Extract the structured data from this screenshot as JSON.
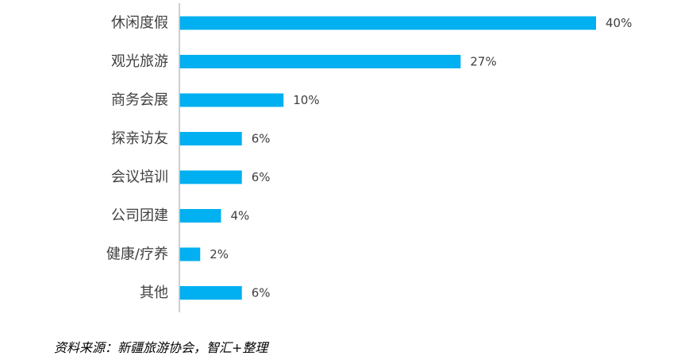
{
  "chart_data": {
    "type": "bar",
    "orientation": "horizontal",
    "categories": [
      "休闲度假",
      "观光旅游",
      "商务会展",
      "探亲访友",
      "会议培训",
      "公司团建",
      "健康/疗养",
      "其他"
    ],
    "values": [
      40,
      27,
      10,
      6,
      6,
      4,
      2,
      6
    ],
    "value_labels": [
      "40%",
      "27%",
      "10%",
      "6%",
      "6%",
      "4%",
      "2%",
      "6%"
    ],
    "xlim": [
      0,
      40
    ],
    "unit": "%",
    "grid": false,
    "legend": "none",
    "bar_color": "#00B0F0",
    "axis_color": "#BFBFBF"
  },
  "footer": {
    "source": "资料来源：新疆旅游协会，智汇+整理"
  }
}
